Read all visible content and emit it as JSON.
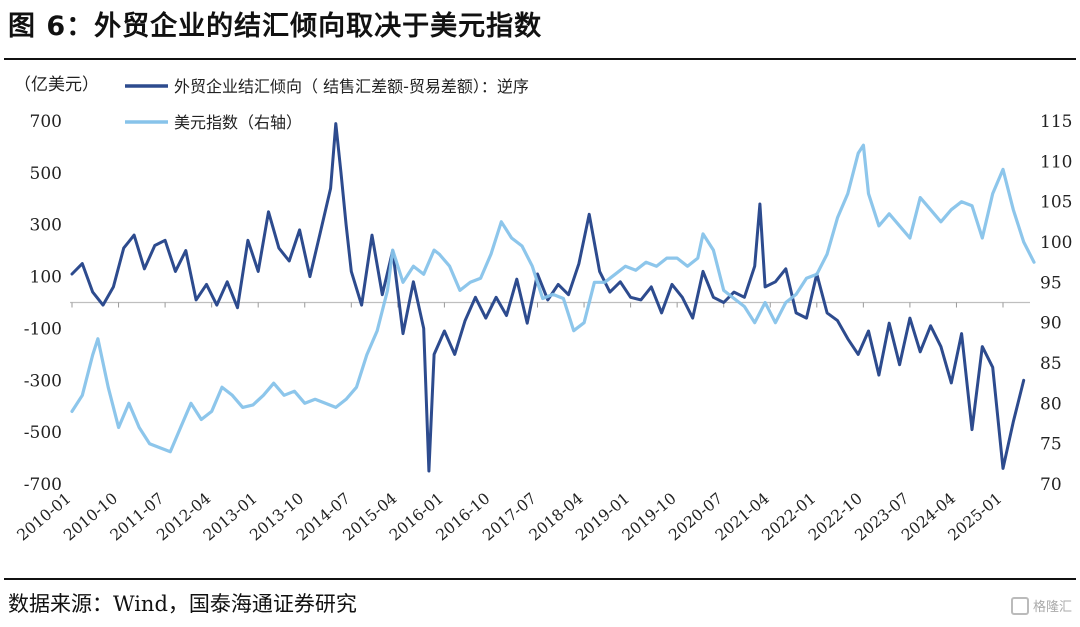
{
  "figure": {
    "title": "图 6：外贸企业的结汇倾向取决于美元指数",
    "source": "数据来源：Wind，国泰海通证券研究",
    "watermark": "格隆汇"
  },
  "chart_data": {
    "type": "line",
    "title": "",
    "left_unit": "（亿美元）",
    "x_ticks": [
      "2010-01",
      "2010-10",
      "2011-07",
      "2012-04",
      "2013-01",
      "2013-10",
      "2014-07",
      "2015-04",
      "2016-01",
      "2016-10",
      "2017-07",
      "2018-04",
      "2019-01",
      "2019-10",
      "2020-07",
      "2021-04",
      "2022-01",
      "2022-10",
      "2023-07",
      "2024-04",
      "2025-01"
    ],
    "y_left": {
      "ticks": [
        700,
        500,
        300,
        100,
        -100,
        -300,
        -500,
        -700
      ],
      "lim": [
        -700,
        700
      ],
      "reversed": true
    },
    "y_right": {
      "ticks": [
        115,
        110,
        105,
        100,
        95,
        90,
        85,
        80,
        75,
        70
      ],
      "lim": [
        70,
        115
      ]
    },
    "series": [
      {
        "name": "外贸企业结汇倾向（ 结售汇差额-贸易差额）：逆序",
        "axis": "left",
        "color": "#2d4b8e",
        "points": [
          [
            "2010-01",
            -110
          ],
          [
            "2010-03",
            -150
          ],
          [
            "2010-05",
            -40
          ],
          [
            "2010-07",
            10
          ],
          [
            "2010-09",
            -60
          ],
          [
            "2010-11",
            -210
          ],
          [
            "2011-01",
            -260
          ],
          [
            "2011-03",
            -130
          ],
          [
            "2011-05",
            -220
          ],
          [
            "2011-07",
            -240
          ],
          [
            "2011-09",
            -120
          ],
          [
            "2011-11",
            -200
          ],
          [
            "2012-01",
            -10
          ],
          [
            "2012-03",
            -70
          ],
          [
            "2012-05",
            10
          ],
          [
            "2012-07",
            -80
          ],
          [
            "2012-09",
            20
          ],
          [
            "2012-11",
            -240
          ],
          [
            "2013-01",
            -120
          ],
          [
            "2013-03",
            -350
          ],
          [
            "2013-05",
            -210
          ],
          [
            "2013-07",
            -160
          ],
          [
            "2013-09",
            -280
          ],
          [
            "2013-11",
            -100
          ],
          [
            "2014-01",
            -270
          ],
          [
            "2014-03",
            -440
          ],
          [
            "2014-04",
            -690
          ],
          [
            "2014-05",
            -500
          ],
          [
            "2014-06",
            -300
          ],
          [
            "2014-07",
            -120
          ],
          [
            "2014-09",
            10
          ],
          [
            "2014-11",
            -260
          ],
          [
            "2015-01",
            -30
          ],
          [
            "2015-03",
            -200
          ],
          [
            "2015-05",
            120
          ],
          [
            "2015-07",
            -80
          ],
          [
            "2015-09",
            100
          ],
          [
            "2015-10",
            650
          ],
          [
            "2015-11",
            200
          ],
          [
            "2016-01",
            110
          ],
          [
            "2016-03",
            200
          ],
          [
            "2016-05",
            70
          ],
          [
            "2016-07",
            -20
          ],
          [
            "2016-09",
            60
          ],
          [
            "2016-11",
            -20
          ],
          [
            "2017-01",
            50
          ],
          [
            "2017-03",
            -90
          ],
          [
            "2017-05",
            80
          ],
          [
            "2017-07",
            -110
          ],
          [
            "2017-09",
            -10
          ],
          [
            "2017-11",
            -70
          ],
          [
            "2018-01",
            -30
          ],
          [
            "2018-03",
            -150
          ],
          [
            "2018-05",
            -340
          ],
          [
            "2018-07",
            -120
          ],
          [
            "2018-09",
            -40
          ],
          [
            "2018-11",
            -80
          ],
          [
            "2019-01",
            -20
          ],
          [
            "2019-03",
            -10
          ],
          [
            "2019-05",
            -60
          ],
          [
            "2019-07",
            40
          ],
          [
            "2019-09",
            -70
          ],
          [
            "2019-11",
            -20
          ],
          [
            "2020-01",
            60
          ],
          [
            "2020-03",
            -120
          ],
          [
            "2020-05",
            -20
          ],
          [
            "2020-07",
            0
          ],
          [
            "2020-09",
            -40
          ],
          [
            "2020-11",
            -20
          ],
          [
            "2021-01",
            -140
          ],
          [
            "2021-02",
            -380
          ],
          [
            "2021-03",
            -60
          ],
          [
            "2021-05",
            -80
          ],
          [
            "2021-07",
            -130
          ],
          [
            "2021-09",
            40
          ],
          [
            "2021-11",
            60
          ],
          [
            "2022-01",
            -110
          ],
          [
            "2022-03",
            40
          ],
          [
            "2022-05",
            70
          ],
          [
            "2022-07",
            140
          ],
          [
            "2022-09",
            200
          ],
          [
            "2022-11",
            110
          ],
          [
            "2023-01",
            280
          ],
          [
            "2023-03",
            80
          ],
          [
            "2023-05",
            240
          ],
          [
            "2023-07",
            60
          ],
          [
            "2023-09",
            190
          ],
          [
            "2023-11",
            90
          ],
          [
            "2024-01",
            170
          ],
          [
            "2024-03",
            310
          ],
          [
            "2024-05",
            120
          ],
          [
            "2024-07",
            490
          ],
          [
            "2024-09",
            170
          ],
          [
            "2024-11",
            250
          ],
          [
            "2025-01",
            640
          ],
          [
            "2025-03",
            460
          ],
          [
            "2025-05",
            300
          ]
        ]
      },
      {
        "name": "美元指数（右轴）",
        "axis": "right",
        "color": "#87c3ea",
        "points": [
          [
            "2010-01",
            79
          ],
          [
            "2010-03",
            81
          ],
          [
            "2010-05",
            86
          ],
          [
            "2010-06",
            88
          ],
          [
            "2010-08",
            82
          ],
          [
            "2010-10",
            77
          ],
          [
            "2010-12",
            80
          ],
          [
            "2011-02",
            77
          ],
          [
            "2011-04",
            75
          ],
          [
            "2011-06",
            74.5
          ],
          [
            "2011-08",
            74
          ],
          [
            "2011-10",
            77
          ],
          [
            "2011-12",
            80
          ],
          [
            "2012-02",
            78
          ],
          [
            "2012-04",
            79
          ],
          [
            "2012-06",
            82
          ],
          [
            "2012-08",
            81
          ],
          [
            "2012-10",
            79.5
          ],
          [
            "2012-12",
            79.8
          ],
          [
            "2013-02",
            81
          ],
          [
            "2013-04",
            82.5
          ],
          [
            "2013-06",
            81
          ],
          [
            "2013-08",
            81.5
          ],
          [
            "2013-10",
            80
          ],
          [
            "2013-12",
            80.5
          ],
          [
            "2014-02",
            80
          ],
          [
            "2014-04",
            79.5
          ],
          [
            "2014-06",
            80.5
          ],
          [
            "2014-08",
            82
          ],
          [
            "2014-10",
            86
          ],
          [
            "2014-12",
            89
          ],
          [
            "2015-02",
            94
          ],
          [
            "2015-03",
            99
          ],
          [
            "2015-05",
            95
          ],
          [
            "2015-07",
            97
          ],
          [
            "2015-09",
            96
          ],
          [
            "2015-11",
            99
          ],
          [
            "2015-12",
            98.5
          ],
          [
            "2016-02",
            97
          ],
          [
            "2016-04",
            94
          ],
          [
            "2016-06",
            95
          ],
          [
            "2016-08",
            95.5
          ],
          [
            "2016-10",
            98.5
          ],
          [
            "2016-12",
            102.5
          ],
          [
            "2017-02",
            100.5
          ],
          [
            "2017-04",
            99.5
          ],
          [
            "2017-06",
            97
          ],
          [
            "2017-08",
            93
          ],
          [
            "2017-10",
            93.5
          ],
          [
            "2017-12",
            93
          ],
          [
            "2018-02",
            89
          ],
          [
            "2018-04",
            90
          ],
          [
            "2018-06",
            95
          ],
          [
            "2018-08",
            95
          ],
          [
            "2018-10",
            96
          ],
          [
            "2018-12",
            97
          ],
          [
            "2019-02",
            96.5
          ],
          [
            "2019-04",
            97.5
          ],
          [
            "2019-06",
            97
          ],
          [
            "2019-08",
            98
          ],
          [
            "2019-10",
            98
          ],
          [
            "2019-12",
            97
          ],
          [
            "2020-02",
            98
          ],
          [
            "2020-03",
            101
          ],
          [
            "2020-05",
            99
          ],
          [
            "2020-07",
            94
          ],
          [
            "2020-09",
            93
          ],
          [
            "2020-11",
            92
          ],
          [
            "2021-01",
            90
          ],
          [
            "2021-03",
            92.5
          ],
          [
            "2021-05",
            90
          ],
          [
            "2021-07",
            92.5
          ],
          [
            "2021-09",
            93.5
          ],
          [
            "2021-11",
            95.5
          ],
          [
            "2022-01",
            96
          ],
          [
            "2022-03",
            98.5
          ],
          [
            "2022-05",
            103
          ],
          [
            "2022-07",
            106
          ],
          [
            "2022-09",
            111
          ],
          [
            "2022-10",
            112
          ],
          [
            "2022-11",
            106
          ],
          [
            "2023-01",
            102
          ],
          [
            "2023-03",
            103.5
          ],
          [
            "2023-05",
            102
          ],
          [
            "2023-07",
            100.5
          ],
          [
            "2023-09",
            105.5
          ],
          [
            "2023-11",
            104
          ],
          [
            "2024-01",
            102.5
          ],
          [
            "2024-03",
            104
          ],
          [
            "2024-05",
            105
          ],
          [
            "2024-07",
            104.5
          ],
          [
            "2024-09",
            100.5
          ],
          [
            "2024-11",
            106
          ],
          [
            "2025-01",
            109
          ],
          [
            "2025-03",
            104
          ],
          [
            "2025-05",
            100
          ],
          [
            "2025-07",
            97.5
          ]
        ]
      }
    ]
  }
}
